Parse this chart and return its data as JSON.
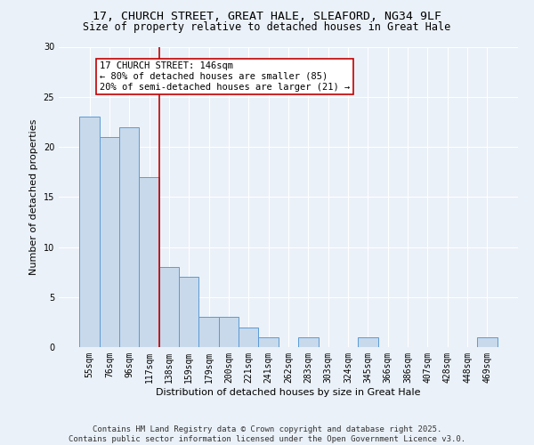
{
  "title1": "17, CHURCH STREET, GREAT HALE, SLEAFORD, NG34 9LF",
  "title2": "Size of property relative to detached houses in Great Hale",
  "xlabel": "Distribution of detached houses by size in Great Hale",
  "ylabel": "Number of detached properties",
  "categories": [
    "55sqm",
    "76sqm",
    "96sqm",
    "117sqm",
    "138sqm",
    "159sqm",
    "179sqm",
    "200sqm",
    "221sqm",
    "241sqm",
    "262sqm",
    "283sqm",
    "303sqm",
    "324sqm",
    "345sqm",
    "366sqm",
    "386sqm",
    "407sqm",
    "428sqm",
    "448sqm",
    "469sqm"
  ],
  "values": [
    23,
    21,
    22,
    17,
    8,
    7,
    3,
    3,
    2,
    1,
    0,
    1,
    0,
    0,
    1,
    0,
    0,
    0,
    0,
    0,
    1
  ],
  "bar_color": "#c8d9eb",
  "bar_edge_color": "#5b9bd5",
  "vline_x_idx": 4,
  "vline_color": "#c00000",
  "annotation_text": "17 CHURCH STREET: 146sqm\n← 80% of detached houses are smaller (85)\n20% of semi-detached houses are larger (21) →",
  "annotation_box_color": "#ffffff",
  "annotation_box_edge": "#c00000",
  "ylim": [
    0,
    30
  ],
  "yticks": [
    0,
    5,
    10,
    15,
    20,
    25,
    30
  ],
  "bg_color": "#eaf1f8",
  "plot_bg": "#eaf1f8",
  "footer": "Contains HM Land Registry data © Crown copyright and database right 2025.\nContains public sector information licensed under the Open Government Licence v3.0.",
  "title_fontsize": 9.5,
  "subtitle_fontsize": 8.5,
  "axis_label_fontsize": 8,
  "tick_fontsize": 7,
  "annotation_fontsize": 7.5,
  "footer_fontsize": 6.5
}
